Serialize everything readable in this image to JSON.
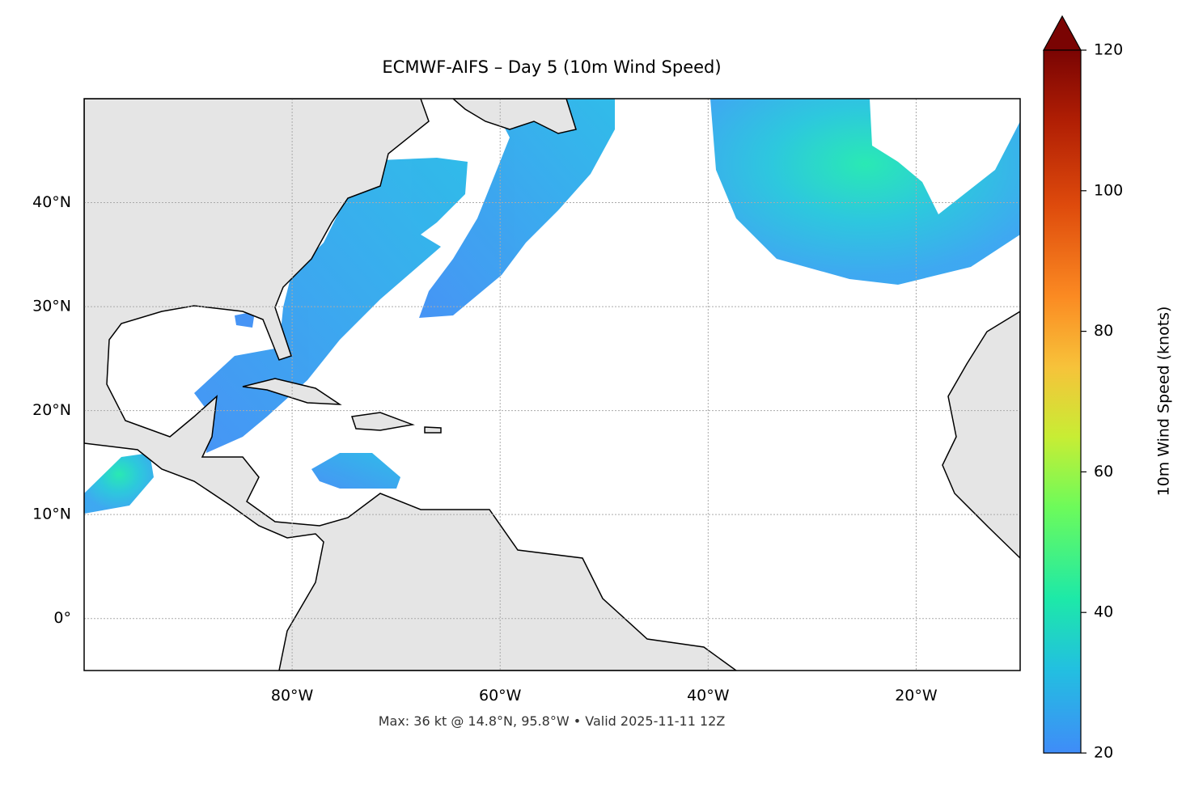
{
  "map": {
    "title": "ECMWF-AIFS – Day 5 (10m Wind Speed)",
    "note": "Max: 36 kt @ 14.8°N, 95.8°W • Valid 2025-11-11 12Z",
    "xlim": [
      -100,
      -10
    ],
    "ylim": [
      -5,
      50
    ],
    "xticks": [
      {
        "value": -80,
        "label": "80°W"
      },
      {
        "value": -60,
        "label": "60°W"
      },
      {
        "value": -40,
        "label": "40°W"
      },
      {
        "value": -20,
        "label": "20°W"
      }
    ],
    "yticks": [
      {
        "value": 0,
        "label": "0°"
      },
      {
        "value": 10,
        "label": "10°N"
      },
      {
        "value": 20,
        "label": "20°N"
      },
      {
        "value": 30,
        "label": "30°N"
      },
      {
        "value": 40,
        "label": "40°N"
      }
    ],
    "grid": true,
    "colorbar": {
      "label": "10m Wind Speed (knots)",
      "lim": [
        20,
        120
      ],
      "ticks": [
        20,
        40,
        60,
        80,
        100,
        120
      ]
    }
  }
}
